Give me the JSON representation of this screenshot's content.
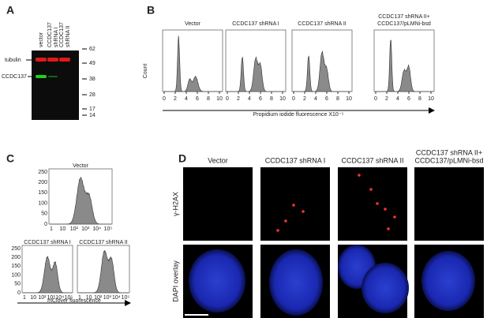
{
  "panels": {
    "A": {
      "label": "A",
      "lanes": [
        [
          "vector"
        ],
        [
          "CCDC137",
          "shRNA I"
        ],
        [
          "CCDC137",
          "shRNA II"
        ]
      ],
      "bands": [
        "tubulin",
        "CCDC137"
      ],
      "markers": [
        "62",
        "49",
        "38",
        "28",
        "17",
        "14"
      ]
    },
    "B": {
      "label": "B",
      "titles": [
        [
          "Vector"
        ],
        [
          "CCDC137 shRNA I"
        ],
        [
          "CCDC137 shRNA  II"
        ],
        [
          "CCDC137 shRNA II+",
          "CCDC137/pLMNi-bsd"
        ]
      ],
      "ylabel": "Count",
      "xticks": [
        "0",
        "2",
        "4",
        "6",
        "8",
        "10"
      ],
      "xlabel": "Propidium iodide fluorescence X10⁻⁵"
    },
    "C": {
      "label": "C",
      "titles": [
        "Vector",
        "CCDC137 shRNA I",
        "CCDC137 shRNA II"
      ],
      "yticks": [
        "0",
        "50",
        "100",
        "150",
        "200",
        "250"
      ],
      "xticks": [
        "1",
        "10",
        "10²",
        "10³",
        "10⁴",
        "10⁵"
      ],
      "xlabel": "mClover fluorescence"
    },
    "D": {
      "label": "D",
      "columns": [
        [
          "Vector"
        ],
        [
          "CCDC137 shRNA I"
        ],
        [
          "CCDC137 shRNA II"
        ],
        [
          "CCDC137 shRNA II+",
          "CCDC137/pLMNi-bsd"
        ]
      ],
      "rows": [
        "γ-H2AX",
        "DAPI overlay"
      ]
    }
  }
}
